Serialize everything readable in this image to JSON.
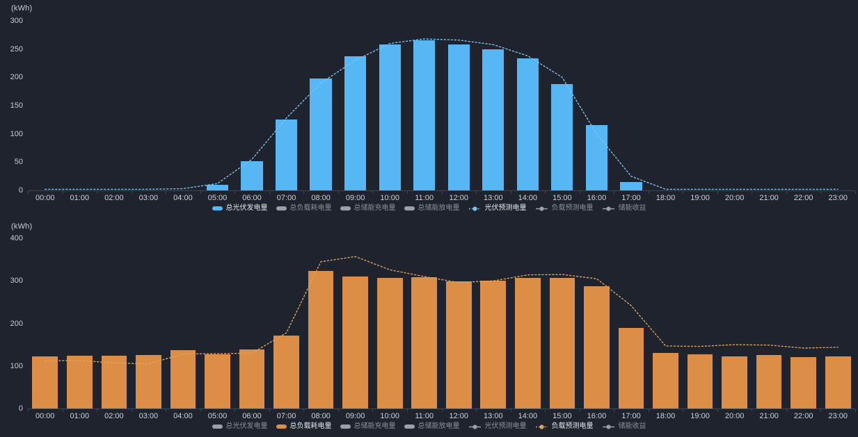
{
  "colors": {
    "background": "#1e232d",
    "pv_bar": "#56b7f4",
    "pv_forecast_line": "#7cc3f2",
    "load_bar": "#dd8e46",
    "load_forecast_line": "#d9a362",
    "axis_text": "#c9cdd3",
    "axis_line": "#3e4554",
    "inactive_icon": "#9aa0a9",
    "inactive_text": "#8a909a",
    "active_text": "#e3e6eb"
  },
  "chart_data": [
    {
      "key": "pv",
      "type": "bar",
      "unit": "(kWh)",
      "ylim": [
        0,
        300
      ],
      "yticks": [
        300,
        250,
        200,
        150,
        100,
        50,
        0
      ],
      "grid": false,
      "legend_position": "bottom",
      "categories": [
        "00:00",
        "01:00",
        "02:00",
        "03:00",
        "04:00",
        "05:00",
        "06:00",
        "07:00",
        "08:00",
        "09:00",
        "10:00",
        "11:00",
        "12:00",
        "13:00",
        "14:00",
        "15:00",
        "16:00",
        "17:00",
        "18:00",
        "19:00",
        "20:00",
        "21:00",
        "22:00",
        "23:00"
      ],
      "series": [
        {
          "name": "总光伏发电量",
          "type": "bar",
          "color": "#56b7f4",
          "values": [
            0,
            0,
            0,
            0,
            0,
            10,
            52,
            126,
            198,
            237,
            258,
            265,
            258,
            250,
            234,
            188,
            115,
            15,
            0,
            0,
            0,
            0,
            0,
            0
          ]
        },
        {
          "name": "光伏预测电量",
          "type": "line",
          "style": "dotted",
          "color": "#7cc3f2",
          "values": [
            2,
            2,
            2,
            2,
            3,
            12,
            55,
            128,
            190,
            230,
            260,
            268,
            266,
            258,
            238,
            200,
            100,
            25,
            2,
            2,
            2,
            2,
            2,
            2
          ]
        }
      ],
      "legend": [
        {
          "label": "总光伏发电量",
          "icon": "bar",
          "active": true,
          "color": "#56b7f4"
        },
        {
          "label": "总负载耗电量",
          "icon": "bar",
          "active": false
        },
        {
          "label": "总储能充电量",
          "icon": "bar",
          "active": false
        },
        {
          "label": "总储能放电量",
          "icon": "bar",
          "active": false
        },
        {
          "label": "光伏预测电量",
          "icon": "line",
          "active": true,
          "color": "#7cc3f2",
          "dotted": true
        },
        {
          "label": "负载预测电量",
          "icon": "line",
          "active": false
        },
        {
          "label": "储能收益",
          "icon": "line",
          "active": false
        }
      ]
    },
    {
      "key": "load",
      "type": "bar",
      "unit": "(kWh)",
      "ylim": [
        0,
        400
      ],
      "yticks": [
        400,
        300,
        200,
        100,
        0
      ],
      "grid": false,
      "legend_position": "bottom",
      "categories": [
        "00:00",
        "01:00",
        "02:00",
        "03:00",
        "04:00",
        "05:00",
        "06:00",
        "07:00",
        "08:00",
        "09:00",
        "10:00",
        "11:00",
        "12:00",
        "13:00",
        "14:00",
        "15:00",
        "16:00",
        "17:00",
        "18:00",
        "19:00",
        "20:00",
        "21:00",
        "22:00",
        "23:00"
      ],
      "series": [
        {
          "name": "总负载耗电量",
          "type": "bar",
          "color": "#dd8e46",
          "values": [
            123,
            124,
            124,
            125,
            137,
            127,
            138,
            171,
            323,
            311,
            307,
            308,
            298,
            301,
            307,
            307,
            288,
            190,
            130,
            128,
            122,
            125,
            121,
            123
          ]
        },
        {
          "name": "负载预测电量",
          "type": "line",
          "style": "dotted",
          "color": "#d9a362",
          "values": [
            112,
            113,
            107,
            105,
            128,
            129,
            130,
            178,
            345,
            357,
            326,
            310,
            296,
            300,
            314,
            315,
            305,
            242,
            147,
            146,
            150,
            149,
            142,
            144
          ]
        }
      ],
      "legend": [
        {
          "label": "总光伏发电量",
          "icon": "bar",
          "active": false
        },
        {
          "label": "总负载耗电量",
          "icon": "bar",
          "active": true,
          "color": "#dd8e46"
        },
        {
          "label": "总储能充电量",
          "icon": "bar",
          "active": false
        },
        {
          "label": "总储能放电量",
          "icon": "bar",
          "active": false
        },
        {
          "label": "光伏预测电量",
          "icon": "line",
          "active": false
        },
        {
          "label": "负载预测电量",
          "icon": "line",
          "active": true,
          "color": "#d9a362",
          "dotted": true
        },
        {
          "label": "储能收益",
          "icon": "line",
          "active": false
        }
      ]
    }
  ]
}
